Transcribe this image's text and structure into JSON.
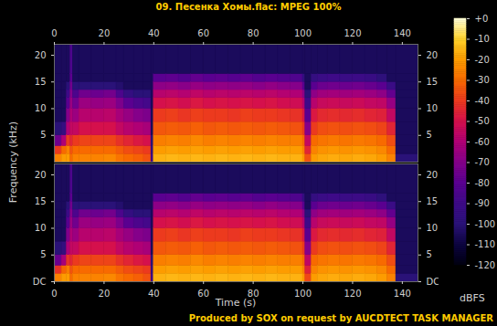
{
  "chart_data": {
    "type": "heatmap",
    "title": "09. Песенка Хомы.flac: MPEG 100%",
    "x_label": "Time (s)",
    "y_label": "Frequency (kHz)",
    "caption": "Produced by SOX on request by AUCDTECT TASK MANAGER",
    "xlim": [
      0,
      146.3
    ],
    "xticks": [
      0,
      20,
      40,
      60,
      80,
      100,
      120,
      140
    ],
    "ylim": [
      0,
      22.05
    ],
    "x_edges": [
      0,
      3,
      5,
      6.5,
      7.5,
      10,
      15,
      20,
      25,
      28,
      32,
      36,
      39,
      40,
      45,
      50,
      55,
      60,
      65,
      70,
      75,
      80,
      85,
      90,
      95,
      100,
      101,
      103.5,
      106,
      110,
      115,
      120,
      125,
      130,
      134,
      137.5,
      146.3
    ],
    "y_edges": [
      0,
      1.5,
      3,
      5,
      7.5,
      10,
      12,
      13.5,
      15,
      16.5,
      22.05
    ],
    "panels": [
      {
        "yticks": [
          5,
          10,
          15,
          20
        ],
        "values": [
          [
            -25,
            -40,
            -75,
            -100,
            -105,
            -105,
            -105,
            -105,
            -105,
            -105
          ],
          [
            -20,
            -30,
            -60,
            -95,
            -105,
            -105,
            -105,
            -105,
            -105,
            -105
          ],
          [
            -20,
            -25,
            -40,
            -60,
            -70,
            -80,
            -90,
            -100,
            -105,
            -105
          ],
          [
            -30,
            -35,
            -45,
            -55,
            -60,
            -65,
            -70,
            -75,
            -80,
            -85
          ],
          [
            -25,
            -30,
            -40,
            -55,
            -65,
            -75,
            -85,
            -100,
            -105,
            -105
          ],
          [
            -25,
            -30,
            -38,
            -50,
            -58,
            -65,
            -75,
            -100,
            -105,
            -105
          ],
          [
            -25,
            -30,
            -38,
            -50,
            -58,
            -66,
            -76,
            -100,
            -105,
            -105
          ],
          [
            -24,
            -30,
            -38,
            -50,
            -57,
            -65,
            -74,
            -100,
            -105,
            -105
          ],
          [
            -28,
            -33,
            -42,
            -55,
            -62,
            -72,
            -85,
            -102,
            -105,
            -105
          ],
          [
            -30,
            -36,
            -45,
            -58,
            -66,
            -80,
            -95,
            -105,
            -105,
            -105
          ],
          [
            -32,
            -38,
            -48,
            -60,
            -70,
            -85,
            -100,
            -105,
            -105,
            -105
          ],
          [
            -35,
            -40,
            -50,
            -62,
            -72,
            -88,
            -100,
            -105,
            -105,
            -105
          ],
          [
            -90,
            -95,
            -100,
            -105,
            -105,
            -105,
            -105,
            -105,
            -105,
            -105
          ],
          [
            -16,
            -20,
            -26,
            -34,
            -40,
            -50,
            -58,
            -68,
            -80,
            -105
          ],
          [
            -15,
            -19,
            -25,
            -33,
            -39,
            -49,
            -57,
            -67,
            -79,
            -105
          ],
          [
            -16,
            -20,
            -26,
            -34,
            -41,
            -51,
            -59,
            -69,
            -82,
            -105
          ],
          [
            -15,
            -19,
            -24,
            -32,
            -39,
            -48,
            -56,
            -66,
            -78,
            -105
          ],
          [
            -16,
            -20,
            -26,
            -34,
            -40,
            -50,
            -58,
            -68,
            -80,
            -105
          ],
          [
            -15,
            -19,
            -25,
            -33,
            -40,
            -49,
            -57,
            -67,
            -79,
            -105
          ],
          [
            -16,
            -20,
            -26,
            -34,
            -41,
            -50,
            -58,
            -68,
            -81,
            -105
          ],
          [
            -15,
            -19,
            -25,
            -33,
            -39,
            -49,
            -57,
            -67,
            -79,
            -105
          ],
          [
            -16,
            -20,
            -26,
            -34,
            -40,
            -50,
            -58,
            -69,
            -82,
            -105
          ],
          [
            -15,
            -19,
            -25,
            -33,
            -40,
            -49,
            -57,
            -67,
            -80,
            -105
          ],
          [
            -16,
            -20,
            -26,
            -34,
            -41,
            -51,
            -59,
            -69,
            -82,
            -105
          ],
          [
            -16,
            -20,
            -26,
            -35,
            -42,
            -52,
            -60,
            -70,
            -84,
            -105
          ],
          [
            -20,
            -25,
            -30,
            -40,
            -48,
            -58,
            -68,
            -80,
            -95,
            -105
          ],
          [
            -35,
            -45,
            -55,
            -70,
            -80,
            -90,
            -100,
            -105,
            -105,
            -105
          ],
          [
            -20,
            -25,
            -30,
            -40,
            -48,
            -58,
            -68,
            -80,
            -95,
            -105
          ],
          [
            -18,
            -22,
            -28,
            -36,
            -44,
            -54,
            -64,
            -76,
            -92,
            -105
          ],
          [
            -17,
            -21,
            -27,
            -35,
            -43,
            -53,
            -63,
            -75,
            -90,
            -105
          ],
          [
            -18,
            -22,
            -28,
            -36,
            -44,
            -54,
            -64,
            -76,
            -92,
            -105
          ],
          [
            -17,
            -21,
            -27,
            -35,
            -43,
            -53,
            -63,
            -75,
            -91,
            -105
          ],
          [
            -18,
            -22,
            -28,
            -36,
            -45,
            -55,
            -65,
            -77,
            -93,
            -105
          ],
          [
            -20,
            -24,
            -30,
            -38,
            -46,
            -56,
            -68,
            -80,
            -98,
            -105
          ],
          [
            -25,
            -30,
            -36,
            -45,
            -55,
            -66,
            -78,
            -92,
            -105,
            -105
          ],
          [
            -100,
            -105,
            -105,
            -105,
            -105,
            -105,
            -105,
            -105,
            -105,
            -105
          ]
        ]
      },
      {
        "yticks": [
          {
            "value": 0,
            "label": "DC"
          },
          5,
          10,
          15,
          20
        ],
        "values": [
          [
            -25,
            -42,
            -76,
            -100,
            -105,
            -105,
            -105,
            -105,
            -105,
            -105
          ],
          [
            -20,
            -31,
            -62,
            -96,
            -105,
            -105,
            -105,
            -105,
            -105,
            -105
          ],
          [
            -20,
            -26,
            -42,
            -61,
            -71,
            -81,
            -91,
            -100,
            -105,
            -105
          ],
          [
            -30,
            -35,
            -45,
            -55,
            -60,
            -65,
            -70,
            -75,
            -80,
            -85
          ],
          [
            -25,
            -30,
            -40,
            -55,
            -65,
            -75,
            -85,
            -100,
            -105,
            -105
          ],
          [
            -25,
            -30,
            -38,
            -50,
            -58,
            -65,
            -75,
            -100,
            -105,
            -105
          ],
          [
            -25,
            -30,
            -38,
            -50,
            -58,
            -66,
            -76,
            -100,
            -105,
            -105
          ],
          [
            -24,
            -30,
            -38,
            -50,
            -57,
            -65,
            -74,
            -100,
            -105,
            -105
          ],
          [
            -28,
            -33,
            -42,
            -55,
            -62,
            -72,
            -85,
            -102,
            -105,
            -105
          ],
          [
            -30,
            -36,
            -45,
            -58,
            -66,
            -80,
            -95,
            -105,
            -105,
            -105
          ],
          [
            -32,
            -38,
            -48,
            -60,
            -70,
            -85,
            -100,
            -105,
            -105,
            -105
          ],
          [
            -35,
            -40,
            -50,
            -62,
            -72,
            -88,
            -100,
            -105,
            -105,
            -105
          ],
          [
            -90,
            -95,
            -100,
            -105,
            -105,
            -105,
            -105,
            -105,
            -105,
            -105
          ],
          [
            -16,
            -20,
            -26,
            -34,
            -40,
            -50,
            -58,
            -68,
            -80,
            -105
          ],
          [
            -15,
            -19,
            -25,
            -33,
            -39,
            -49,
            -57,
            -67,
            -79,
            -105
          ],
          [
            -16,
            -20,
            -26,
            -34,
            -41,
            -51,
            -59,
            -69,
            -82,
            -105
          ],
          [
            -15,
            -19,
            -24,
            -32,
            -39,
            -48,
            -56,
            -66,
            -78,
            -105
          ],
          [
            -16,
            -20,
            -26,
            -34,
            -40,
            -50,
            -58,
            -68,
            -80,
            -105
          ],
          [
            -15,
            -19,
            -25,
            -33,
            -40,
            -49,
            -57,
            -67,
            -79,
            -105
          ],
          [
            -16,
            -20,
            -26,
            -34,
            -41,
            -50,
            -58,
            -68,
            -81,
            -105
          ],
          [
            -15,
            -19,
            -25,
            -33,
            -39,
            -49,
            -57,
            -67,
            -79,
            -105
          ],
          [
            -16,
            -20,
            -26,
            -34,
            -40,
            -50,
            -58,
            -69,
            -82,
            -105
          ],
          [
            -15,
            -19,
            -25,
            -33,
            -40,
            -49,
            -57,
            -67,
            -80,
            -105
          ],
          [
            -16,
            -20,
            -26,
            -34,
            -41,
            -51,
            -59,
            -69,
            -82,
            -105
          ],
          [
            -16,
            -20,
            -26,
            -35,
            -42,
            -52,
            -60,
            -70,
            -84,
            -105
          ],
          [
            -20,
            -25,
            -30,
            -40,
            -48,
            -58,
            -68,
            -80,
            -95,
            -105
          ],
          [
            -37,
            -46,
            -56,
            -70,
            -80,
            -90,
            -100,
            -105,
            -105,
            -105
          ],
          [
            -20,
            -25,
            -30,
            -40,
            -48,
            -58,
            -68,
            -80,
            -95,
            -105
          ],
          [
            -18,
            -22,
            -28,
            -36,
            -44,
            -54,
            -64,
            -76,
            -92,
            -105
          ],
          [
            -17,
            -21,
            -27,
            -35,
            -43,
            -53,
            -63,
            -75,
            -90,
            -105
          ],
          [
            -18,
            -22,
            -28,
            -36,
            -44,
            -54,
            -64,
            -76,
            -92,
            -105
          ],
          [
            -17,
            -21,
            -27,
            -35,
            -43,
            -53,
            -63,
            -75,
            -91,
            -105
          ],
          [
            -18,
            -22,
            -28,
            -36,
            -45,
            -55,
            -65,
            -77,
            -93,
            -105
          ],
          [
            -20,
            -24,
            -30,
            -38,
            -46,
            -56,
            -68,
            -80,
            -98,
            -105
          ],
          [
            -25,
            -30,
            -36,
            -45,
            -55,
            -66,
            -78,
            -92,
            -105,
            -105
          ],
          [
            -100,
            -105,
            -105,
            -105,
            -105,
            -105,
            -105,
            -105,
            -105,
            -105
          ]
        ]
      }
    ],
    "colorbar": {
      "label": "dBFS",
      "range": [
        -120,
        0
      ],
      "ticks": [
        {
          "value": 0,
          "label": "+0"
        },
        -10,
        -20,
        -30,
        -40,
        -50,
        -60,
        -70,
        -80,
        -90,
        -100,
        -110,
        -120
      ]
    }
  }
}
